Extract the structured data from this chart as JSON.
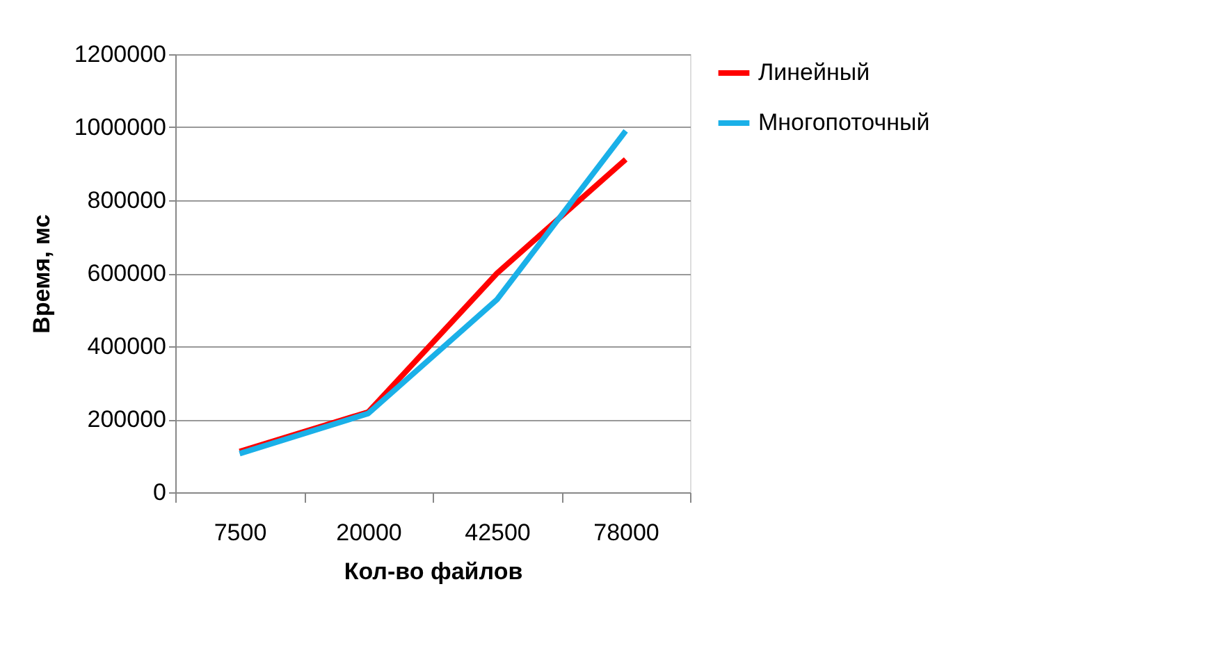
{
  "chart_data": {
    "type": "line",
    "xlabel": "Кол-во файлов",
    "ylabel": "Время, мс",
    "categories": [
      "7500",
      "20000",
      "42500",
      "78000"
    ],
    "series": [
      {
        "name": "Линейный",
        "color": "#ff0000",
        "values": [
          112000,
          220000,
          600000,
          912000
        ]
      },
      {
        "name": "Многопоточный",
        "color": "#1ab0e8",
        "values": [
          106000,
          216000,
          528000,
          990000
        ]
      }
    ],
    "ylim": [
      0,
      1200000
    ],
    "yticks": [
      0,
      200000,
      400000,
      600000,
      800000,
      1000000,
      1200000
    ],
    "grid": "y",
    "legend": "right",
    "marker": "none",
    "line_style": "solid"
  }
}
